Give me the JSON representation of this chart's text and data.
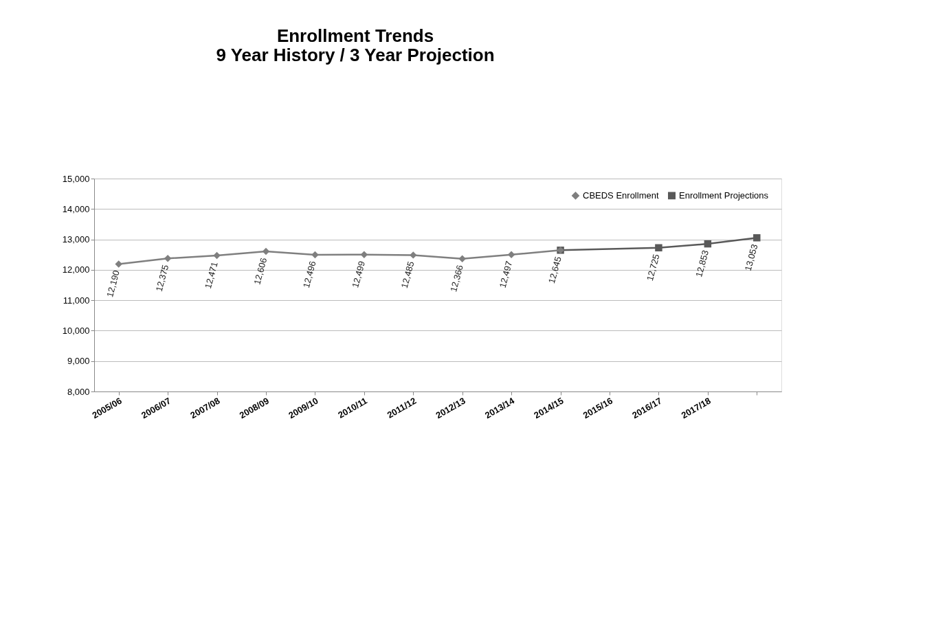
{
  "chart_data": {
    "type": "line",
    "title": [
      "Enrollment Trends",
      "9 Year History / 3 Year Projection"
    ],
    "categories": [
      "2005/06",
      "2006/07",
      "2007/08",
      "2008/09",
      "2009/10",
      "2010/11",
      "2011/12",
      "2012/13",
      "2013/14",
      "2014/15",
      "2015/16",
      "2016/17",
      "2017/18",
      null
    ],
    "series": [
      {
        "name": "CBEDS Enrollment",
        "color": "#7f7f7f",
        "marker": "diamond",
        "values": [
          12190,
          12375,
          12471,
          12606,
          12496,
          12499,
          12485,
          12366,
          12497,
          12645,
          null,
          null,
          null,
          null
        ],
        "value_labels": [
          "12,190",
          "12,375",
          "12,471",
          "12,606",
          "12,496",
          "12,499",
          "12,485",
          "12,366",
          "12,497",
          "12,645",
          null,
          null,
          null,
          null
        ]
      },
      {
        "name": "Enrollment Projections",
        "color": "#595959",
        "marker": "square",
        "values": [
          null,
          null,
          null,
          null,
          null,
          null,
          null,
          null,
          null,
          12645,
          null,
          12725,
          12853,
          13053
        ],
        "value_labels": [
          null,
          null,
          null,
          null,
          null,
          null,
          null,
          null,
          null,
          null,
          null,
          "12,725",
          "12,853",
          "13,053"
        ]
      }
    ],
    "ylim": [
      8000,
      15000
    ],
    "yticks": [
      {
        "value": 8000,
        "label": "8,000"
      },
      {
        "value": 9000,
        "label": "9,000"
      },
      {
        "value": 10000,
        "label": "10,000"
      },
      {
        "value": 11000,
        "label": "11,000"
      },
      {
        "value": 12000,
        "label": "12,000"
      },
      {
        "value": 13000,
        "label": "13,000"
      },
      {
        "value": 14000,
        "label": "14,000"
      },
      {
        "value": 15000,
        "label": "15,000"
      }
    ],
    "grid": "y",
    "legend": "top right",
    "line_style": "solid"
  }
}
